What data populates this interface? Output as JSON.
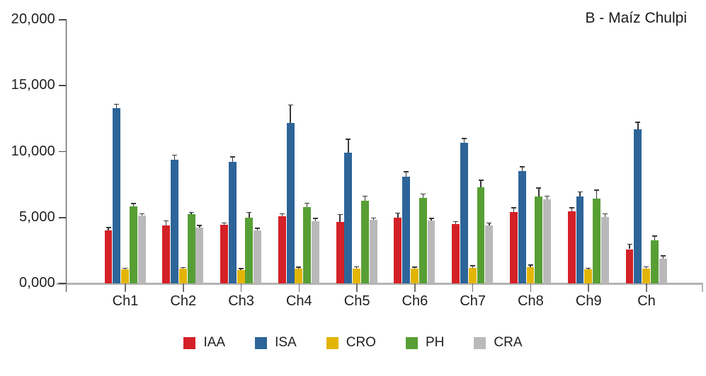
{
  "chart_data": {
    "type": "bar",
    "title": "B - Maíz Chulpi",
    "categories": [
      "Ch1",
      "Ch2",
      "Ch3",
      "Ch4",
      "Ch5",
      "Ch6",
      "Ch7",
      "Ch8",
      "Ch9",
      "Ch"
    ],
    "series": [
      {
        "name": "IAA",
        "color": "#d42027",
        "values": [
          4000,
          4400,
          4450,
          5100,
          4650,
          5000,
          4500,
          5400,
          5450,
          2600
        ],
        "errors": [
          200,
          300,
          100,
          150,
          550,
          300,
          150,
          300,
          250,
          350
        ]
      },
      {
        "name": "ISA",
        "color": "#2d6599",
        "values": [
          13300,
          9400,
          9200,
          12150,
          9900,
          8100,
          10650,
          8500,
          6600,
          11700
        ],
        "errors": [
          250,
          300,
          350,
          1350,
          1000,
          350,
          300,
          300,
          300,
          500
        ]
      },
      {
        "name": "CRO",
        "color": "#e2b505",
        "values": [
          1050,
          1100,
          1000,
          1100,
          1100,
          1100,
          1200,
          1250,
          1050,
          1150
        ],
        "errors": [
          80,
          60,
          100,
          100,
          120,
          100,
          100,
          100,
          80,
          80
        ]
      },
      {
        "name": "PH",
        "color": "#579f34",
        "values": [
          5850,
          5250,
          5000,
          5800,
          6250,
          6500,
          7300,
          6600,
          6450,
          3250
        ],
        "errors": [
          180,
          100,
          350,
          250,
          350,
          250,
          500,
          600,
          600,
          300
        ]
      },
      {
        "name": "CRA",
        "color": "#b9b9b9",
        "values": [
          5150,
          4250,
          4000,
          4700,
          4800,
          4750,
          4400,
          6400,
          5050,
          1900
        ],
        "errors": [
          100,
          120,
          150,
          200,
          120,
          150,
          150,
          200,
          200,
          150
        ]
      }
    ],
    "ylim": [
      0,
      20000
    ],
    "ytick_step": 5000,
    "ytick_labels": [
      "0,000",
      "5,000",
      "10,000",
      "15,000",
      "20,000"
    ],
    "grid": false,
    "error_bars": true,
    "legend_position": "bottom"
  }
}
